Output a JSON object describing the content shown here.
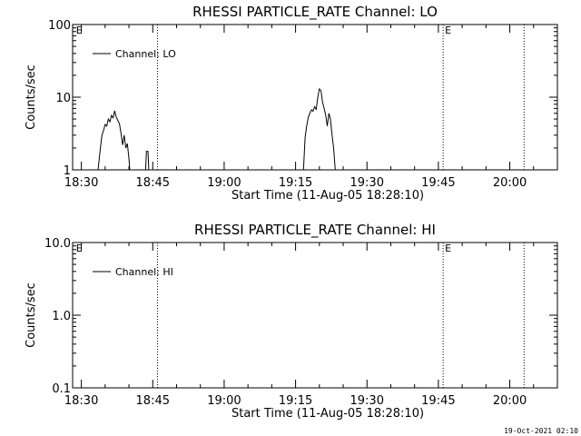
{
  "chart_data": [
    {
      "type": "line",
      "title": "RHESSI PARTICLE_RATE Channel: LO",
      "xlabel": "Start Time (11-Aug-05 18:28:10)",
      "ylabel": "Counts/sec",
      "yscale": "log",
      "ylim": [
        1,
        100
      ],
      "yticks": [
        1,
        10,
        100
      ],
      "ytick_labels": [
        "1",
        "10",
        "100"
      ],
      "xlim": [
        "18:28:10",
        "20:10:00"
      ],
      "xticks": [
        "18:30",
        "18:45",
        "19:00",
        "19:15",
        "19:30",
        "19:45",
        "20:00"
      ],
      "markers": [
        {
          "time": "18:28:30",
          "label": "E",
          "line": false
        },
        {
          "time": "18:46:00",
          "label": "",
          "line": true
        },
        {
          "time": "19:46:00",
          "label": "E",
          "line": true
        },
        {
          "time": "20:03:00",
          "label": "",
          "line": true
        }
      ],
      "legend": {
        "position": "top-left",
        "entries": [
          "Channel: LO"
        ]
      },
      "series": [
        {
          "name": "Channel: LO",
          "segments": [
            [
              [
                "18:33:30",
                1.0
              ],
              [
                "18:34:00",
                2.0
              ],
              [
                "18:34:20",
                3.0
              ],
              [
                "18:34:40",
                3.5
              ],
              [
                "18:35:00",
                4.2
              ],
              [
                "18:35:20",
                4.0
              ],
              [
                "18:35:40",
                5.0
              ],
              [
                "18:36:00",
                4.6
              ],
              [
                "18:36:20",
                5.6
              ],
              [
                "18:36:40",
                5.2
              ],
              [
                "18:37:00",
                6.5
              ],
              [
                "18:37:20",
                5.3
              ],
              [
                "18:37:40",
                4.8
              ],
              [
                "18:38:00",
                4.3
              ],
              [
                "18:38:20",
                3.2
              ],
              [
                "18:38:40",
                2.2
              ],
              [
                "18:39:00",
                3.0
              ],
              [
                "18:39:20",
                2.0
              ],
              [
                "18:39:40",
                2.3
              ],
              [
                "18:40:00",
                1.4
              ],
              [
                "18:40:10",
                1.0
              ]
            ],
            [
              [
                "18:43:30",
                1.0
              ],
              [
                "18:43:40",
                1.8
              ],
              [
                "18:44:00",
                1.8
              ],
              [
                "18:44:10",
                1.0
              ]
            ],
            [
              [
                "19:16:40",
                1.0
              ],
              [
                "19:17:00",
                2.8
              ],
              [
                "19:17:20",
                4.0
              ],
              [
                "19:17:40",
                5.3
              ],
              [
                "19:18:00",
                6.0
              ],
              [
                "19:18:20",
                6.7
              ],
              [
                "19:18:40",
                6.4
              ],
              [
                "19:19:00",
                7.4
              ],
              [
                "19:19:20",
                6.8
              ],
              [
                "19:19:40",
                10.0
              ],
              [
                "19:20:00",
                13.0
              ],
              [
                "19:20:20",
                12.3
              ],
              [
                "19:20:40",
                8.5
              ],
              [
                "19:21:00",
                7.0
              ],
              [
                "19:21:20",
                5.6
              ],
              [
                "19:21:40",
                4.0
              ],
              [
                "19:22:00",
                6.0
              ],
              [
                "19:22:20",
                5.0
              ],
              [
                "19:22:40",
                3.0
              ],
              [
                "19:23:00",
                2.0
              ],
              [
                "19:23:20",
                1.0
              ]
            ]
          ]
        }
      ]
    },
    {
      "type": "line",
      "title": "RHESSI PARTICLE_RATE Channel: HI",
      "xlabel": "Start Time (11-Aug-05 18:28:10)",
      "ylabel": "Counts/sec",
      "yscale": "log",
      "ylim": [
        0.1,
        10
      ],
      "yticks": [
        0.1,
        1,
        10
      ],
      "ytick_labels": [
        "0.1",
        "1.0",
        "10.0"
      ],
      "xlim": [
        "18:28:10",
        "20:10:00"
      ],
      "xticks": [
        "18:30",
        "18:45",
        "19:00",
        "19:15",
        "19:30",
        "19:45",
        "20:00"
      ],
      "markers": [
        {
          "time": "18:28:30",
          "label": "E",
          "line": false
        },
        {
          "time": "18:46:00",
          "label": "",
          "line": true
        },
        {
          "time": "19:46:00",
          "label": "E",
          "line": true
        },
        {
          "time": "20:03:00",
          "label": "",
          "line": true
        }
      ],
      "legend": {
        "position": "top-left",
        "entries": [
          "Channel: HI"
        ]
      },
      "series": [
        {
          "name": "Channel: HI",
          "segments": []
        }
      ]
    }
  ],
  "footer": {
    "timestamp": "19-Oct-2021 02:10"
  }
}
